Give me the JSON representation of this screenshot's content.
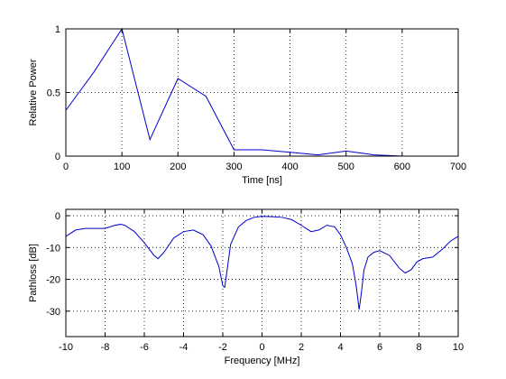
{
  "chart_data": [
    {
      "type": "line",
      "xlabel": "Time [ns]",
      "ylabel": "Relative Power",
      "xlim": [
        0,
        700
      ],
      "ylim": [
        0,
        1
      ],
      "xticks": [
        0,
        100,
        200,
        300,
        400,
        500,
        600,
        700
      ],
      "yticks": [
        0,
        0.5,
        1
      ],
      "xtick_labels": [
        "0",
        "100",
        "200",
        "300",
        "400",
        "500",
        "600",
        "700"
      ],
      "ytick_labels": [
        "0",
        "0.5",
        "1"
      ],
      "grid": true,
      "series": [
        {
          "color": "#0000cc",
          "x": [
            0,
            50,
            100,
            150,
            200,
            250,
            300,
            350,
            400,
            450,
            500,
            550,
            600,
            650,
            700
          ],
          "y": [
            0.36,
            0.66,
            1.0,
            0.13,
            0.61,
            0.47,
            0.05,
            0.05,
            0.03,
            0.01,
            0.04,
            0.01,
            0.0,
            0.0,
            0.0
          ]
        }
      ]
    },
    {
      "type": "line",
      "xlabel": "Frequency [MHz]",
      "ylabel": "Pathloss [dB]",
      "xlim": [
        -10,
        10
      ],
      "ylim": [
        -38,
        2
      ],
      "xticks": [
        -10,
        -8,
        -6,
        -4,
        -2,
        0,
        2,
        4,
        6,
        8,
        10
      ],
      "yticks": [
        -30,
        -20,
        -10,
        0
      ],
      "xtick_labels": [
        "-10",
        "-8",
        "-6",
        "-4",
        "-2",
        "0",
        "2",
        "4",
        "6",
        "8",
        "10"
      ],
      "ytick_labels": [
        "-30",
        "-20",
        "-10",
        "0"
      ],
      "grid": true,
      "series": [
        {
          "color": "#0000cc",
          "x": [
            -10,
            -9.5,
            -9,
            -8.5,
            -8,
            -7.5,
            -7.2,
            -7,
            -6.5,
            -6,
            -5.5,
            -5.3,
            -5,
            -4.5,
            -4,
            -3.5,
            -3,
            -2.6,
            -2.2,
            -2.0,
            -1.9,
            -1.8,
            -1.6,
            -1.2,
            -0.8,
            -0.4,
            0,
            0.5,
            1,
            1.5,
            2,
            2.5,
            2.9,
            3.3,
            3.7,
            4.0,
            4.3,
            4.6,
            4.8,
            4.95,
            5.05,
            5.2,
            5.4,
            5.7,
            6.0,
            6.5,
            7.0,
            7.3,
            7.6,
            7.9,
            8.2,
            8.7,
            9.2,
            9.6,
            10
          ],
          "y": [
            -6.5,
            -4.5,
            -4.0,
            -4.0,
            -4.0,
            -3.0,
            -2.7,
            -3.0,
            -5.0,
            -8.5,
            -12.5,
            -13.5,
            -11.5,
            -7.0,
            -5.0,
            -4.5,
            -6.0,
            -9.5,
            -16.0,
            -22.0,
            -22.5,
            -18.0,
            -9.0,
            -3.5,
            -1.5,
            -0.5,
            -0.2,
            -0.3,
            -0.5,
            -1.2,
            -3.0,
            -5.0,
            -4.5,
            -3.0,
            -3.5,
            -6.0,
            -10.0,
            -15.0,
            -22.0,
            -29.5,
            -25.0,
            -17.0,
            -13.0,
            -11.5,
            -11.0,
            -12.5,
            -16.5,
            -18.0,
            -17.0,
            -14.5,
            -13.5,
            -13.0,
            -10.5,
            -8.0,
            -6.5
          ]
        }
      ]
    }
  ]
}
